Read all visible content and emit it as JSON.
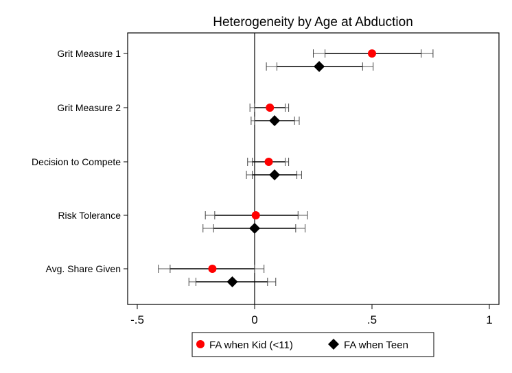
{
  "chart_data": {
    "type": "scatter",
    "subtype": "coefficient-plot",
    "title": "Heterogeneity by Age at Abduction",
    "categories": [
      "Grit Measure 1",
      "Grit Measure 2",
      "Decision to Compete",
      "Risk Tolerance",
      "Avg. Share Given"
    ],
    "xticks": [
      -0.5,
      0,
      0.5,
      1
    ],
    "xtick_labels": [
      "-.5",
      "0",
      ".5",
      "1"
    ],
    "xlim": [
      -0.55,
      1.03
    ],
    "reference_line": 0,
    "grid": false,
    "legend_position": "bottom",
    "series": [
      {
        "name": "FA when Kid (<11)",
        "marker": "circle",
        "color": "#ff0000",
        "points": [
          {
            "category": "Grit Measure 1",
            "estimate": 0.5,
            "ci90": [
              0.3,
              0.71
            ],
            "ci95": [
              0.25,
              0.76
            ]
          },
          {
            "category": "Grit Measure 2",
            "estimate": 0.065,
            "ci90": [
              0.0,
              0.13
            ],
            "ci95": [
              -0.02,
              0.145
            ]
          },
          {
            "category": "Decision to Compete",
            "estimate": 0.06,
            "ci90": [
              -0.01,
              0.13
            ],
            "ci95": [
              -0.03,
              0.145
            ]
          },
          {
            "category": "Risk Tolerance",
            "estimate": 0.005,
            "ci90": [
              -0.17,
              0.185
            ],
            "ci95": [
              -0.21,
              0.225
            ]
          },
          {
            "category": "Avg. Share Given",
            "estimate": -0.18,
            "ci90": [
              -0.36,
              0.0
            ],
            "ci95": [
              -0.41,
              0.04
            ]
          }
        ]
      },
      {
        "name": "FA when Teen",
        "marker": "diamond",
        "color": "#000000",
        "points": [
          {
            "category": "Grit Measure 1",
            "estimate": 0.275,
            "ci90": [
              0.095,
              0.46
            ],
            "ci95": [
              0.05,
              0.505
            ]
          },
          {
            "category": "Grit Measure 2",
            "estimate": 0.085,
            "ci90": [
              0.0,
              0.17
            ],
            "ci95": [
              -0.015,
              0.19
            ]
          },
          {
            "category": "Decision to Compete",
            "estimate": 0.085,
            "ci90": [
              -0.01,
              0.18
            ],
            "ci95": [
              -0.035,
              0.2
            ]
          },
          {
            "category": "Risk Tolerance",
            "estimate": 0.0,
            "ci90": [
              -0.175,
              0.175
            ],
            "ci95": [
              -0.22,
              0.215
            ]
          },
          {
            "category": "Avg. Share Given",
            "estimate": -0.095,
            "ci90": [
              -0.25,
              0.055
            ],
            "ci95": [
              -0.28,
              0.09
            ]
          }
        ]
      }
    ]
  }
}
